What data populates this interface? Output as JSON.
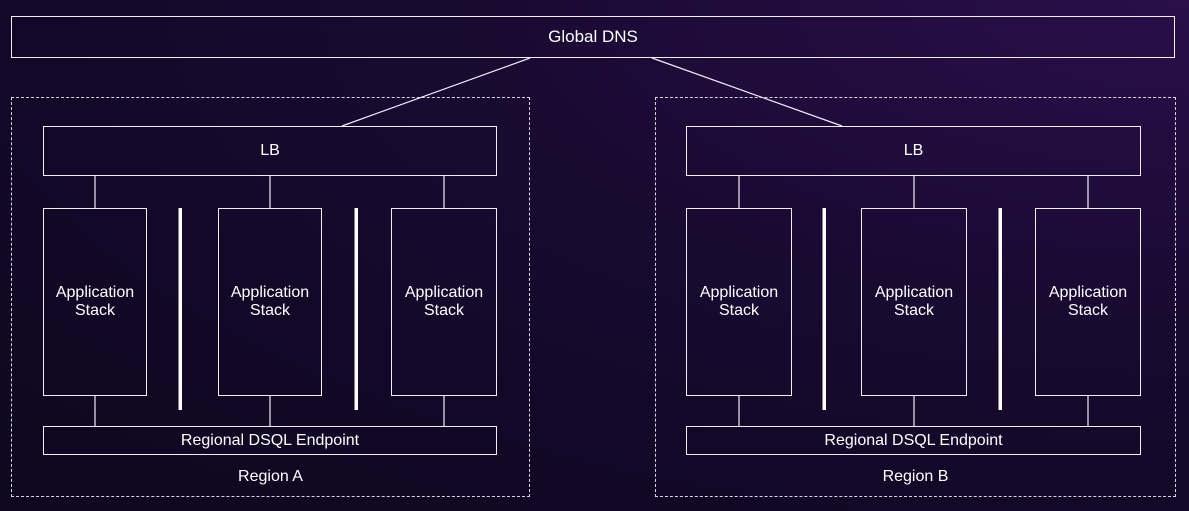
{
  "global_dns": {
    "label": "Global DNS"
  },
  "regions": [
    {
      "label": "Region A",
      "lb_label": "LB",
      "stacks": [
        "Application\nStack",
        "Application\nStack",
        "Application\nStack"
      ],
      "endpoint_label": "Regional DSQL Endpoint"
    },
    {
      "label": "Region B",
      "lb_label": "LB",
      "stacks": [
        "Application\nStack",
        "Application\nStack",
        "Application\nStack"
      ],
      "endpoint_label": "Regional DSQL Endpoint"
    }
  ],
  "colors": {
    "background": "#150a2b",
    "stroke": "#f2eef8"
  }
}
